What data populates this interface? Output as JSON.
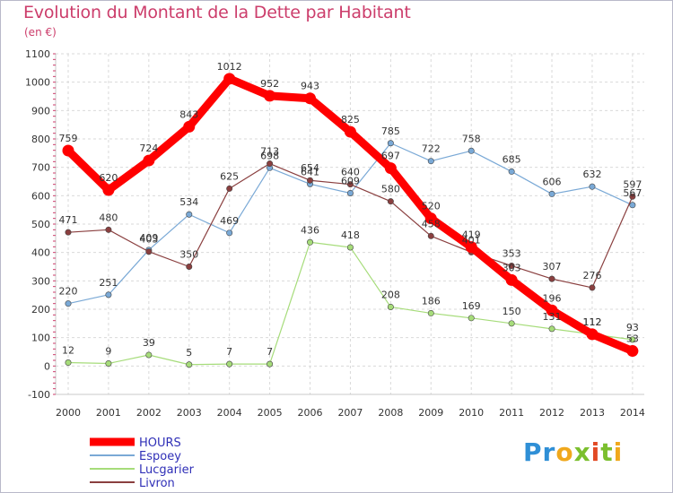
{
  "header": {
    "title": "Evolution du Montant de la Dette par Habitant",
    "unit": "(en €)"
  },
  "logo": {
    "text": "Proxiti"
  },
  "chart_data": {
    "type": "line",
    "title": "Evolution du Montant de la Dette par Habitant",
    "subtitle": "(en €)",
    "xlabel": "",
    "ylabel": "",
    "ylim": [
      -100,
      1100
    ],
    "yticks": [
      "-100",
      "0",
      "100",
      "200",
      "300",
      "400",
      "500",
      "600",
      "700",
      "800",
      "900",
      "1000",
      "1100"
    ],
    "grid": true,
    "legend_position": "bottom-left",
    "categories": [
      "2000",
      "2001",
      "2002",
      "2003",
      "2004",
      "2005",
      "2006",
      "2007",
      "2008",
      "2009",
      "2010",
      "2011",
      "2012",
      "2013",
      "2014"
    ],
    "series": [
      {
        "name": "HOURS",
        "color": "#ff0000",
        "values": [
          759,
          620,
          724,
          843,
          1012,
          952,
          943,
          825,
          697,
          520,
          419,
          303,
          196,
          112,
          53
        ],
        "labels": [
          "759",
          "620",
          "724",
          "843",
          "1012",
          "952",
          "943",
          "825",
          "697",
          "520",
          "419",
          "303",
          "196",
          "112",
          "53"
        ]
      },
      {
        "name": "Espoey",
        "color": "#7aa9d6",
        "values": [
          220,
          251,
          409,
          534,
          469,
          698,
          641,
          609,
          785,
          722,
          758,
          685,
          606,
          632,
          567
        ],
        "labels": [
          "220",
          "251",
          "409",
          "534",
          "469",
          "698",
          "641",
          "609",
          "785",
          "722",
          "758",
          "685",
          "606",
          "632",
          "567"
        ]
      },
      {
        "name": "Lucgarier",
        "color": "#a6dc7a",
        "values": [
          12,
          9,
          39,
          5,
          7,
          7,
          436,
          418,
          208,
          186,
          169,
          150,
          131,
          112,
          93
        ],
        "labels": [
          "12",
          "9",
          "39",
          "5",
          "7",
          "7",
          "436",
          "418",
          "208",
          "186",
          "169",
          "150",
          "131",
          "112",
          "93"
        ]
      },
      {
        "name": "Livron",
        "color": "#8a3f3f",
        "values": [
          471,
          480,
          403,
          350,
          625,
          713,
          654,
          640,
          580,
          458,
          401,
          353,
          307,
          276,
          597
        ],
        "labels": [
          "471",
          "480",
          "403",
          "350",
          "625",
          "713",
          "654",
          "640",
          "580",
          "458",
          "401",
          "353",
          "307",
          "276",
          "597"
        ]
      }
    ]
  }
}
